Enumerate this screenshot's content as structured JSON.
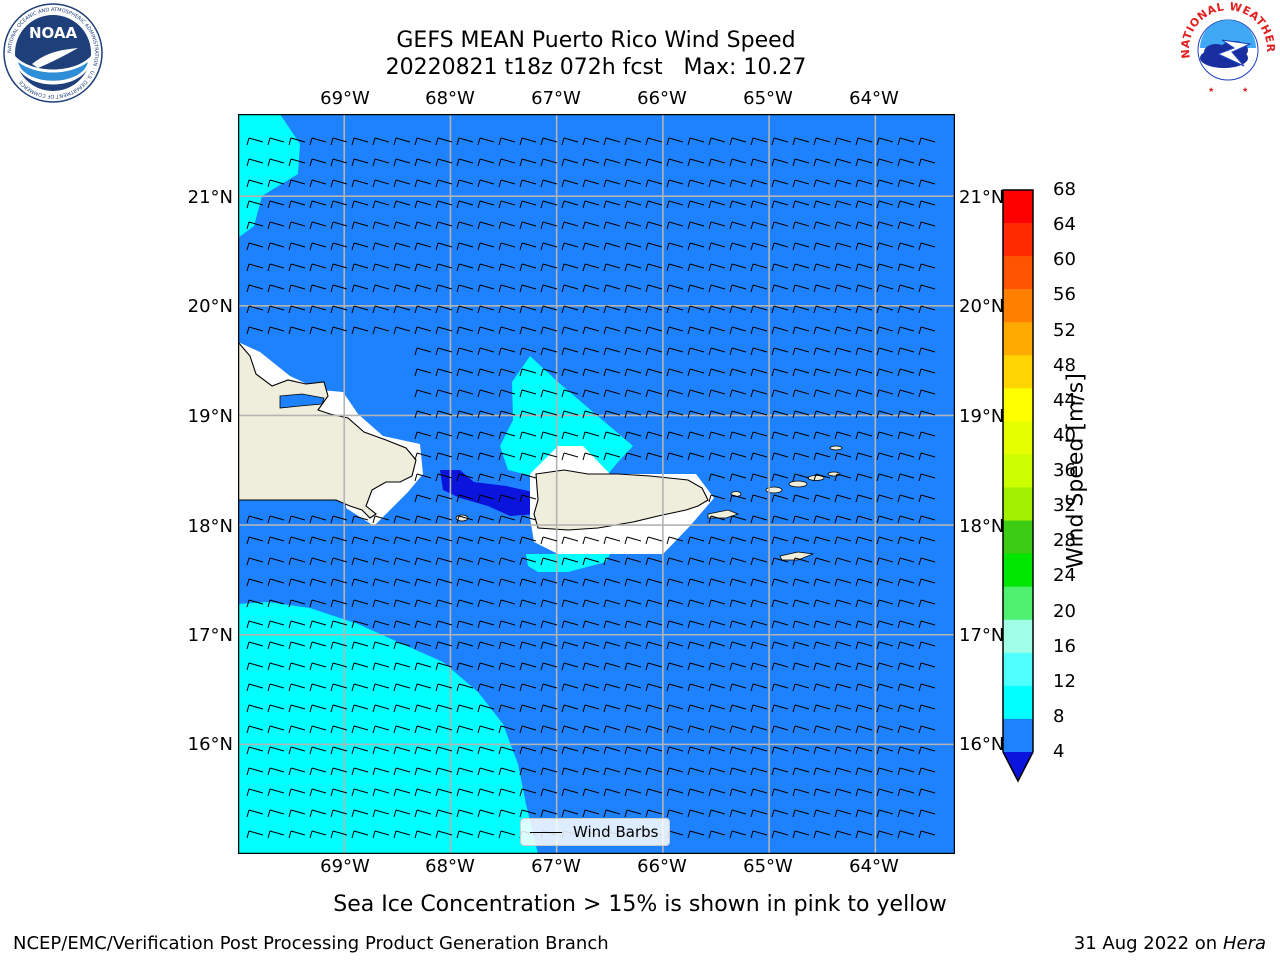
{
  "header": {
    "title_line1": "GEFS MEAN Puerto Rico Wind Speed",
    "title_line2": "20220821 t18z 072h fcst   Max: 10.27"
  },
  "logos": {
    "left": "NOAA",
    "left_ring": "NATIONAL OCEANIC AND ATMOSPHERIC ADMINISTRATION · U.S. DEPARTMENT OF COMMERCE",
    "right_ring": "NATIONAL WEATHER SERVICE"
  },
  "map": {
    "lon_labels": [
      "69°W",
      "68°W",
      "67°W",
      "66°W",
      "65°W",
      "64°W"
    ],
    "lat_labels": [
      "21°N",
      "20°N",
      "19°N",
      "18°N",
      "17°N",
      "16°N"
    ],
    "lon_range": [
      -70.0,
      -63.25
    ],
    "lat_range": [
      15.0,
      21.75
    ],
    "grid": true,
    "barb_legend": "Wind Barbs",
    "colors": {
      "ocean_4_8": "#1e82ff",
      "ocean_8_12": "#00ffff",
      "below_4": "#0a14dc",
      "land": "#efeedc",
      "masked": "#ffffff"
    }
  },
  "colorbar": {
    "title": "Wind Speed [m/s]",
    "ticks": [
      "68",
      "64",
      "60",
      "56",
      "52",
      "48",
      "44",
      "40",
      "36",
      "32",
      "28",
      "24",
      "20",
      "16",
      "12",
      "8",
      "4"
    ],
    "colors": [
      "#ff0000",
      "#ff2a00",
      "#ff5500",
      "#ff8000",
      "#ffaa00",
      "#ffd400",
      "#ffff00",
      "#e6ff00",
      "#ccff00",
      "#a0f000",
      "#3ccc14",
      "#00e600",
      "#50f070",
      "#a0ffe6",
      "#50ffff",
      "#00ffff",
      "#1e82ff"
    ],
    "under_color": "#0a14dc"
  },
  "notes": {
    "ice": "Sea Ice Concentration > 15% is shown in pink to yellow",
    "branch": "NCEP/EMC/Verification Post Processing Product Generation Branch",
    "date": "31 Aug 2022 on",
    "machine": "Hera"
  }
}
